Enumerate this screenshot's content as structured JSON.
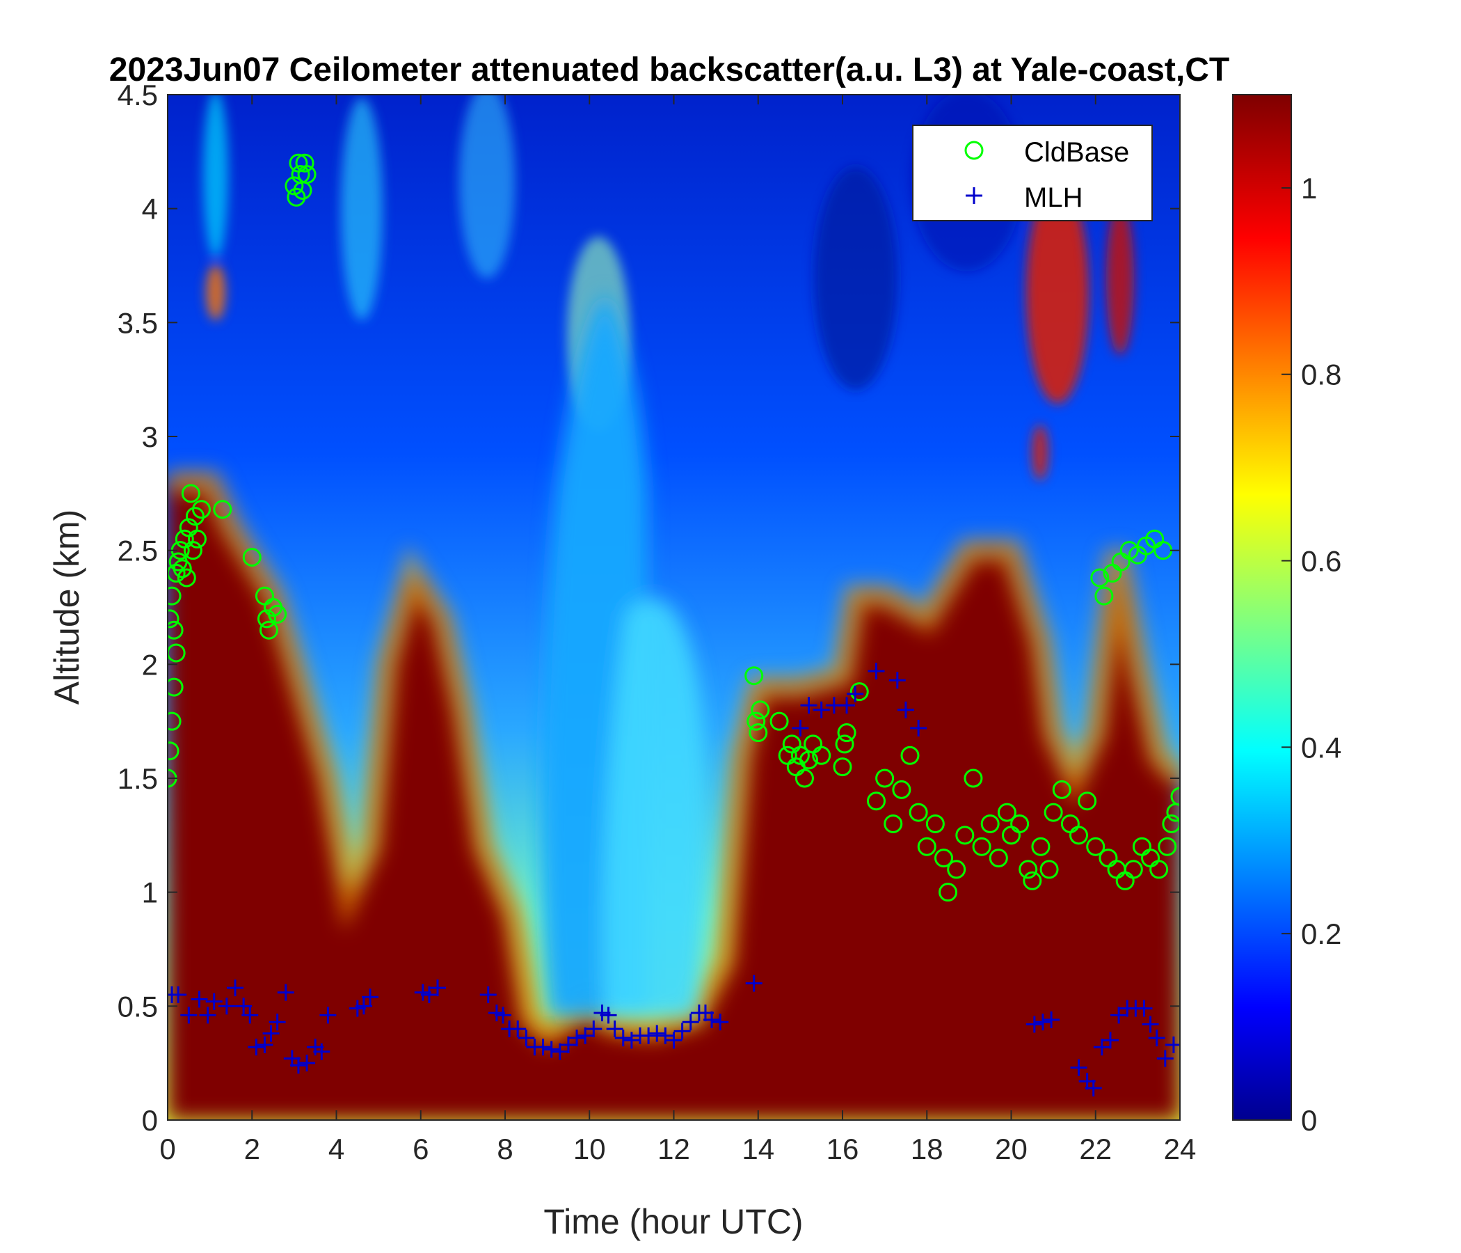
{
  "chart_data": {
    "type": "heatmap",
    "title": "2023Jun07 Ceilometer attenuated backscatter(a.u. L3) at Yale-coast,CT",
    "xlabel": "Time (hour UTC)",
    "ylabel": "Altitude (km)",
    "xlim": [
      0,
      24
    ],
    "ylim": [
      0,
      4.5
    ],
    "x_ticks": [
      "0",
      "2",
      "4",
      "6",
      "8",
      "10",
      "12",
      "14",
      "16",
      "18",
      "20",
      "22",
      "24"
    ],
    "y_ticks": [
      "0",
      "0.5",
      "1",
      "1.5",
      "2",
      "2.5",
      "3",
      "3.5",
      "4",
      "4.5"
    ],
    "colorbar": {
      "colormap": "jet",
      "clim": [
        0,
        1.1
      ],
      "ticks": [
        "0",
        "0.2",
        "0.4",
        "0.6",
        "0.8",
        "1"
      ]
    },
    "legend": {
      "placement": "top-right"
    },
    "saturated_layer_top_km": [
      [
        0,
        2.8
      ],
      [
        1,
        2.8
      ],
      [
        1.5,
        2.6
      ],
      [
        2.5,
        2.3
      ],
      [
        3,
        2.0
      ],
      [
        3.8,
        1.5
      ],
      [
        4.3,
        1.0
      ],
      [
        4.8,
        1.2
      ],
      [
        5.2,
        2.0
      ],
      [
        5.8,
        2.4
      ],
      [
        6.5,
        2.2
      ],
      [
        7,
        1.8
      ],
      [
        7.5,
        1.2
      ],
      [
        8.2,
        0.9
      ],
      [
        8.6,
        0.45
      ],
      [
        9,
        0.38
      ],
      [
        10,
        0.5
      ],
      [
        10.5,
        0.42
      ],
      [
        11.5,
        0.4
      ],
      [
        12.5,
        0.45
      ],
      [
        13.2,
        0.7
      ],
      [
        13.6,
        1.6
      ],
      [
        14,
        1.9
      ],
      [
        15,
        1.9
      ],
      [
        16,
        1.95
      ],
      [
        16.3,
        2.3
      ],
      [
        17,
        2.3
      ],
      [
        18,
        2.2
      ],
      [
        19,
        2.5
      ],
      [
        20,
        2.5
      ],
      [
        20.7,
        2.1
      ],
      [
        21,
        1.7
      ],
      [
        21.5,
        1.5
      ],
      [
        22,
        1.7
      ],
      [
        22.5,
        2.5
      ],
      [
        23,
        2.0
      ],
      [
        23.5,
        1.6
      ],
      [
        24,
        1.5
      ]
    ],
    "series": [
      {
        "name": "CldBase",
        "marker": "circle",
        "color": "#00ff00",
        "points": [
          [
            0.0,
            1.5
          ],
          [
            0.05,
            1.62
          ],
          [
            0.05,
            2.2
          ],
          [
            0.1,
            1.75
          ],
          [
            0.1,
            2.3
          ],
          [
            0.15,
            1.9
          ],
          [
            0.15,
            2.15
          ],
          [
            0.2,
            2.05
          ],
          [
            0.2,
            2.4
          ],
          [
            0.25,
            2.45
          ],
          [
            0.3,
            2.5
          ],
          [
            0.35,
            2.42
          ],
          [
            0.4,
            2.55
          ],
          [
            0.45,
            2.38
          ],
          [
            0.5,
            2.6
          ],
          [
            0.55,
            2.75
          ],
          [
            0.6,
            2.5
          ],
          [
            0.65,
            2.65
          ],
          [
            0.7,
            2.55
          ],
          [
            0.8,
            2.68
          ],
          [
            1.3,
            2.68
          ],
          [
            2.0,
            2.47
          ],
          [
            2.3,
            2.3
          ],
          [
            2.35,
            2.2
          ],
          [
            2.4,
            2.15
          ],
          [
            2.5,
            2.25
          ],
          [
            2.6,
            2.22
          ],
          [
            3.0,
            4.1
          ],
          [
            3.05,
            4.05
          ],
          [
            3.1,
            4.2
          ],
          [
            3.15,
            4.15
          ],
          [
            3.2,
            4.08
          ],
          [
            3.25,
            4.2
          ],
          [
            3.3,
            4.15
          ],
          [
            13.9,
            1.95
          ],
          [
            13.95,
            1.75
          ],
          [
            14.0,
            1.7
          ],
          [
            14.05,
            1.8
          ],
          [
            14.5,
            1.75
          ],
          [
            14.7,
            1.6
          ],
          [
            14.8,
            1.65
          ],
          [
            14.9,
            1.55
          ],
          [
            15.0,
            1.6
          ],
          [
            15.1,
            1.5
          ],
          [
            15.2,
            1.58
          ],
          [
            15.3,
            1.65
          ],
          [
            15.5,
            1.6
          ],
          [
            16.0,
            1.55
          ],
          [
            16.05,
            1.65
          ],
          [
            16.1,
            1.7
          ],
          [
            16.4,
            1.88
          ],
          [
            16.8,
            1.4
          ],
          [
            17.0,
            1.5
          ],
          [
            17.2,
            1.3
          ],
          [
            17.4,
            1.45
          ],
          [
            17.6,
            1.6
          ],
          [
            17.8,
            1.35
          ],
          [
            18.0,
            1.2
          ],
          [
            18.2,
            1.3
          ],
          [
            18.4,
            1.15
          ],
          [
            18.5,
            1.0
          ],
          [
            18.7,
            1.1
          ],
          [
            18.9,
            1.25
          ],
          [
            19.1,
            1.5
          ],
          [
            19.3,
            1.2
          ],
          [
            19.5,
            1.3
          ],
          [
            19.7,
            1.15
          ],
          [
            19.9,
            1.35
          ],
          [
            20.0,
            1.25
          ],
          [
            20.2,
            1.3
          ],
          [
            20.4,
            1.1
          ],
          [
            20.5,
            1.05
          ],
          [
            20.7,
            1.2
          ],
          [
            20.9,
            1.1
          ],
          [
            21.0,
            1.35
          ],
          [
            21.2,
            1.45
          ],
          [
            21.4,
            1.3
          ],
          [
            21.6,
            1.25
          ],
          [
            21.8,
            1.4
          ],
          [
            22.0,
            1.2
          ],
          [
            22.1,
            2.38
          ],
          [
            22.2,
            2.3
          ],
          [
            22.3,
            1.15
          ],
          [
            22.4,
            2.4
          ],
          [
            22.5,
            1.1
          ],
          [
            22.6,
            2.45
          ],
          [
            22.7,
            1.05
          ],
          [
            22.8,
            2.5
          ],
          [
            22.9,
            1.1
          ],
          [
            23.0,
            2.48
          ],
          [
            23.1,
            1.2
          ],
          [
            23.2,
            2.52
          ],
          [
            23.3,
            1.15
          ],
          [
            23.4,
            2.55
          ],
          [
            23.5,
            1.1
          ],
          [
            23.6,
            2.5
          ],
          [
            23.7,
            1.2
          ],
          [
            23.8,
            1.3
          ],
          [
            23.9,
            1.35
          ],
          [
            24.0,
            1.42
          ]
        ]
      },
      {
        "name": "MLH",
        "marker": "plus",
        "color": "#0000cc",
        "points": [
          [
            0.1,
            0.55
          ],
          [
            0.25,
            0.55
          ],
          [
            0.5,
            0.46
          ],
          [
            0.75,
            0.53
          ],
          [
            0.95,
            0.46
          ],
          [
            1.1,
            0.52
          ],
          [
            1.4,
            0.5
          ],
          [
            1.6,
            0.58
          ],
          [
            1.8,
            0.5
          ],
          [
            1.95,
            0.46
          ],
          [
            2.1,
            0.32
          ],
          [
            2.3,
            0.33
          ],
          [
            2.45,
            0.38
          ],
          [
            2.6,
            0.43
          ],
          [
            2.8,
            0.56
          ],
          [
            2.95,
            0.27
          ],
          [
            3.1,
            0.24
          ],
          [
            3.3,
            0.25
          ],
          [
            3.5,
            0.32
          ],
          [
            3.65,
            0.3
          ],
          [
            3.8,
            0.46
          ],
          [
            4.5,
            0.49
          ],
          [
            4.65,
            0.5
          ],
          [
            4.8,
            0.54
          ],
          [
            6.05,
            0.56
          ],
          [
            6.2,
            0.55
          ],
          [
            6.4,
            0.58
          ],
          [
            7.6,
            0.55
          ],
          [
            7.8,
            0.47
          ],
          [
            7.95,
            0.46
          ],
          [
            8.1,
            0.4
          ],
          [
            8.3,
            0.4
          ],
          [
            8.5,
            0.36
          ],
          [
            8.7,
            0.32
          ],
          [
            8.9,
            0.32
          ],
          [
            9.1,
            0.31
          ],
          [
            9.3,
            0.3
          ],
          [
            9.5,
            0.33
          ],
          [
            9.7,
            0.36
          ],
          [
            9.9,
            0.37
          ],
          [
            10.1,
            0.4
          ],
          [
            10.3,
            0.47
          ],
          [
            10.45,
            0.46
          ],
          [
            10.6,
            0.4
          ],
          [
            10.8,
            0.36
          ],
          [
            11.0,
            0.35
          ],
          [
            11.2,
            0.37
          ],
          [
            11.4,
            0.37
          ],
          [
            11.6,
            0.38
          ],
          [
            11.8,
            0.37
          ],
          [
            12.0,
            0.35
          ],
          [
            12.2,
            0.39
          ],
          [
            12.4,
            0.43
          ],
          [
            12.6,
            0.47
          ],
          [
            12.75,
            0.47
          ],
          [
            12.9,
            0.44
          ],
          [
            13.1,
            0.43
          ],
          [
            13.9,
            0.6
          ],
          [
            15.0,
            1.72
          ],
          [
            15.2,
            1.82
          ],
          [
            15.5,
            1.8
          ],
          [
            15.8,
            1.82
          ],
          [
            16.1,
            1.82
          ],
          [
            16.3,
            1.87
          ],
          [
            16.8,
            1.97
          ],
          [
            17.3,
            1.93
          ],
          [
            17.5,
            1.8
          ],
          [
            17.8,
            1.72
          ],
          [
            20.55,
            0.42
          ],
          [
            20.75,
            0.43
          ],
          [
            20.95,
            0.44
          ],
          [
            21.6,
            0.23
          ],
          [
            21.8,
            0.17
          ],
          [
            21.95,
            0.14
          ],
          [
            22.15,
            0.32
          ],
          [
            22.35,
            0.35
          ],
          [
            22.55,
            0.46
          ],
          [
            22.75,
            0.49
          ],
          [
            22.95,
            0.49
          ],
          [
            23.15,
            0.49
          ],
          [
            23.3,
            0.42
          ],
          [
            23.45,
            0.36
          ],
          [
            23.65,
            0.27
          ],
          [
            23.85,
            0.33
          ]
        ]
      }
    ]
  }
}
